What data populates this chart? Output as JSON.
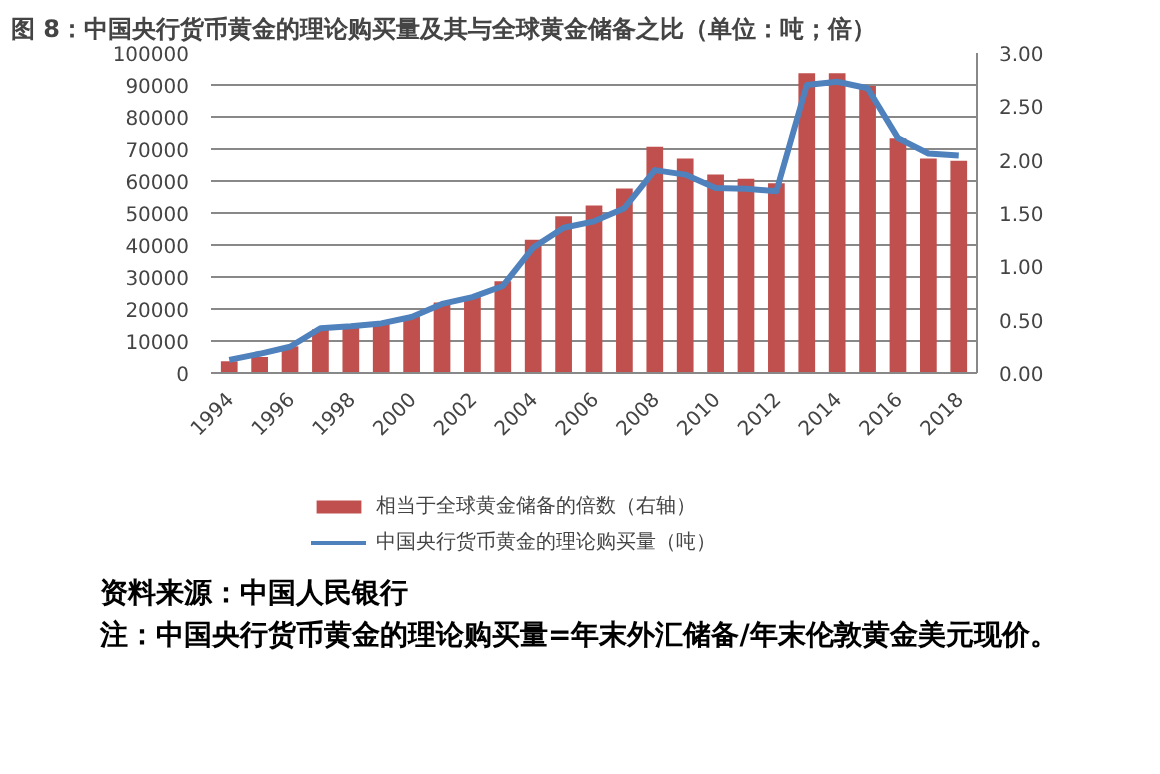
{
  "chart_data": {
    "type": "bar",
    "title": "图 8：中国央行货币黄金的理论购买量及其与全球黄金储备之比（单位：吨；倍）",
    "x": [
      1994,
      1995,
      1996,
      1997,
      1998,
      1999,
      2000,
      2001,
      2002,
      2003,
      2004,
      2005,
      2006,
      2007,
      2008,
      2009,
      2010,
      2011,
      2012,
      2013,
      2014,
      2015,
      2016,
      2017,
      2018
    ],
    "xlim": [
      1993.4,
      2018.6
    ],
    "xticks": [
      1994,
      1996,
      1998,
      2000,
      2002,
      2004,
      2006,
      2008,
      2010,
      2012,
      2014,
      2016,
      2018
    ],
    "ylim": [
      0,
      100000
    ],
    "yticks": [
      0,
      10000,
      20000,
      30000,
      40000,
      50000,
      60000,
      70000,
      80000,
      90000,
      100000
    ],
    "y2lim": [
      0,
      3
    ],
    "y2ticks": [
      {
        "value": 0,
        "label": "0.00"
      },
      {
        "value": 0.5,
        "label": "0.50"
      },
      {
        "value": 1,
        "label": "1.00"
      },
      {
        "value": 1.5,
        "label": "1.50"
      },
      {
        "value": 2,
        "label": "2.00"
      },
      {
        "value": 2.5,
        "label": "2.50"
      },
      {
        "value": 3,
        "label": "3.00"
      }
    ],
    "series": [
      {
        "name": "相当于全球黄金储备的倍数（右轴）",
        "axis": "y2",
        "color": "#c0504d",
        "values": [
          0.11,
          0.15,
          0.25,
          0.41,
          0.43,
          0.46,
          0.53,
          0.66,
          0.72,
          0.86,
          1.25,
          1.47,
          1.57,
          1.73,
          2.12,
          2.01,
          1.86,
          1.82,
          1.78,
          2.81,
          2.81,
          2.69,
          2.2,
          2.01,
          1.99
        ]
      },
      {
        "name": "中国央行货币黄金的理论购买量（吨）",
        "type": "line",
        "color": "#4f81bd",
        "values": [
          4100,
          6000,
          8200,
          14000,
          14600,
          15500,
          17500,
          21600,
          23700,
          27200,
          39200,
          45400,
          47400,
          51500,
          63400,
          62000,
          57800,
          57600,
          56800,
          90000,
          91000,
          89000,
          73400,
          68600,
          68000
        ]
      }
    ],
    "grid": "y",
    "legend": "bottom",
    "annotations": [
      "资料来源：中国人民银行",
      "注：中国央行货币黄金的理论购买量=年末外汇储备/年末伦敦黄金美元现价。"
    ]
  }
}
